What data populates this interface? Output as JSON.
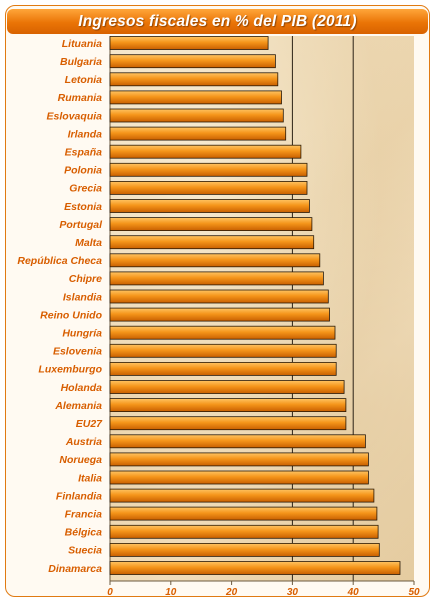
{
  "chart_data": {
    "type": "bar",
    "orientation": "horizontal",
    "title": "Ingresos fiscales en % del PIB (2011)",
    "xlabel": "",
    "ylabel": "",
    "xlim": [
      0,
      50
    ],
    "xticks": [
      0,
      10,
      20,
      30,
      40,
      50
    ],
    "grid": "vertical lines at 30 and 40",
    "legend": "none",
    "colors": {
      "bar": "#f39a1e",
      "bar_dark": "#c85f00",
      "bar_border": "#2a1a08",
      "label": "#d85e00",
      "frame": "#e07a12",
      "title_bg": "#ea7406"
    },
    "categories": [
      "Lituania",
      "Bulgaria",
      "Letonia",
      "Rumania",
      "Eslovaquia",
      "Irlanda",
      "España",
      "Polonia",
      "Grecia",
      "Estonia",
      "Portugal",
      "Malta",
      "República Checa",
      "Chipre",
      "Islandia",
      "Reino Unido",
      "Hungría",
      "Eslovenia",
      "Luxemburgo",
      "Holanda",
      "Alemania",
      "EU27",
      "Austria",
      "Noruega",
      "Italia",
      "Finlandia",
      "Francia",
      "Bélgica",
      "Suecia",
      "Dinamarca"
    ],
    "values": [
      26.0,
      27.2,
      27.6,
      28.2,
      28.5,
      28.9,
      31.4,
      32.4,
      32.4,
      32.8,
      33.2,
      33.5,
      34.5,
      35.1,
      35.9,
      36.1,
      37.0,
      37.2,
      37.2,
      38.5,
      38.8,
      38.8,
      42.0,
      42.5,
      42.5,
      43.4,
      43.9,
      44.1,
      44.3,
      47.7
    ]
  }
}
